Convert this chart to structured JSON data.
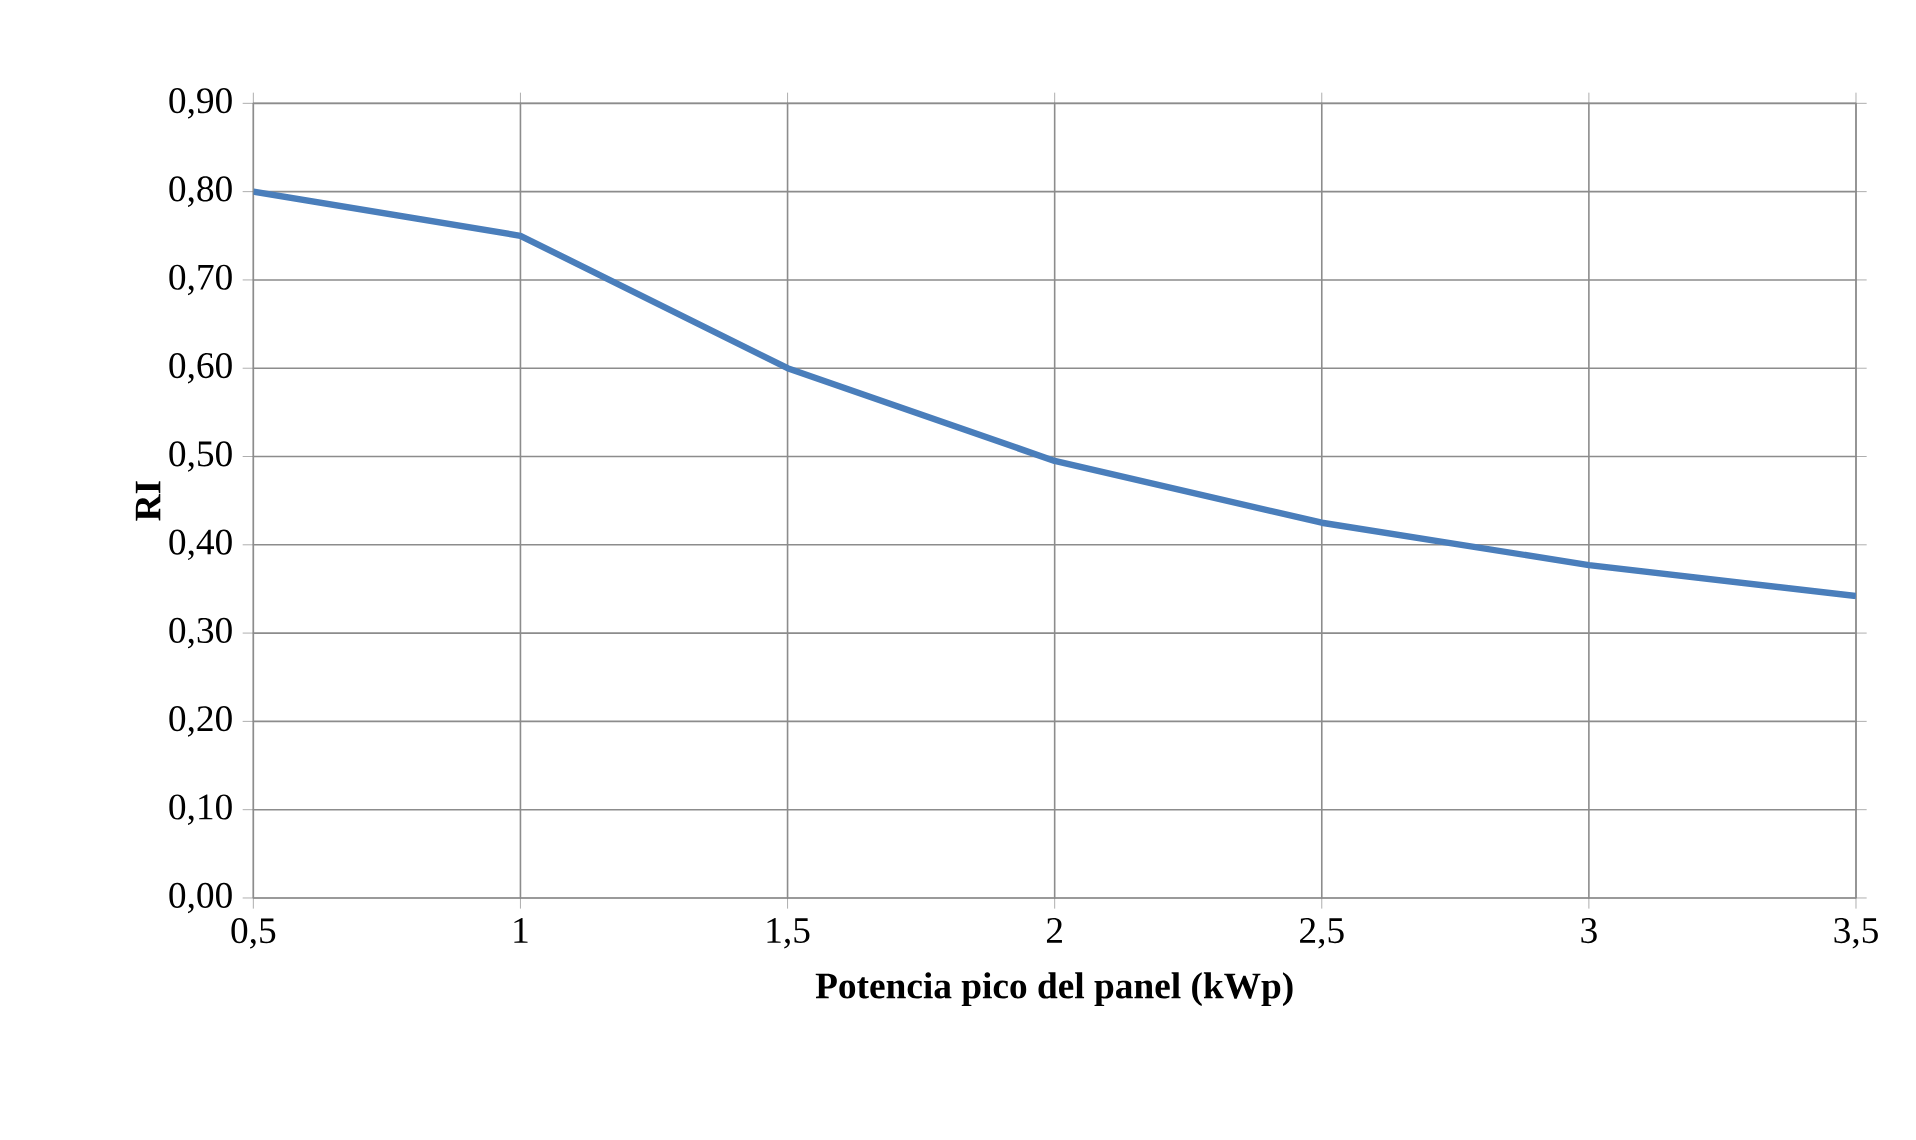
{
  "chart_data": {
    "type": "line",
    "xlabel": "Potencia pico del panel (kWp)",
    "ylabel": "RI",
    "x": [
      0.5,
      1,
      1.5,
      2,
      2.5,
      3,
      3.5
    ],
    "series": [
      {
        "color": "#4a7ebb",
        "values": [
          0.8,
          0.75,
          0.6,
          0.495,
          0.425,
          0.377,
          0.342
        ]
      }
    ],
    "xlim": [
      0.5,
      3.5
    ],
    "xticks": [
      {
        "value": 0.5,
        "label": "0,5"
      },
      1,
      {
        "value": 1.5,
        "label": "1,5"
      },
      2,
      {
        "value": 2.5,
        "label": "2,5"
      },
      3,
      {
        "value": 3.5,
        "label": "3,5"
      }
    ],
    "ylim": [
      0,
      0.9
    ],
    "yticks": [
      {
        "value": 0,
        "label": "0,00"
      },
      {
        "value": 0.1,
        "label": "0,10"
      },
      {
        "value": 0.2,
        "label": "0,20"
      },
      {
        "value": 0.3,
        "label": "0,30"
      },
      {
        "value": 0.4,
        "label": "0,40"
      },
      {
        "value": 0.5,
        "label": "0,50"
      },
      {
        "value": 0.6,
        "label": "0,60"
      },
      {
        "value": 0.7,
        "label": "0,70"
      },
      {
        "value": 0.8,
        "label": "0,80"
      },
      {
        "value": 0.9,
        "label": "0,90"
      }
    ],
    "grid": true,
    "marker": "none",
    "line_style": "solid"
  }
}
